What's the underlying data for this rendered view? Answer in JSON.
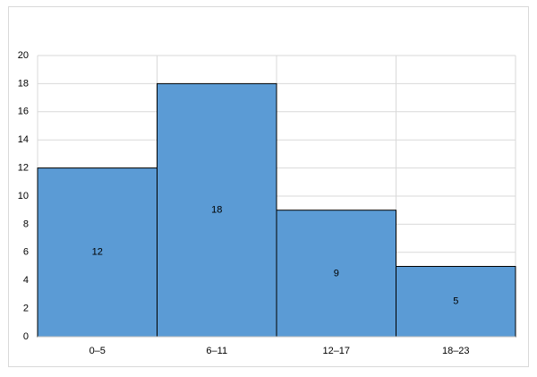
{
  "chart_data": {
    "type": "bar",
    "categories": [
      "0–5",
      "6–11",
      "12–17",
      "18–23"
    ],
    "values": [
      12,
      18,
      9,
      5
    ],
    "color": "#5b9bd5",
    "ylim": [
      0,
      20
    ],
    "yticks": [
      0,
      2,
      4,
      6,
      8,
      10,
      12,
      14,
      16,
      18,
      20
    ],
    "grid": true,
    "data_labels": true
  }
}
